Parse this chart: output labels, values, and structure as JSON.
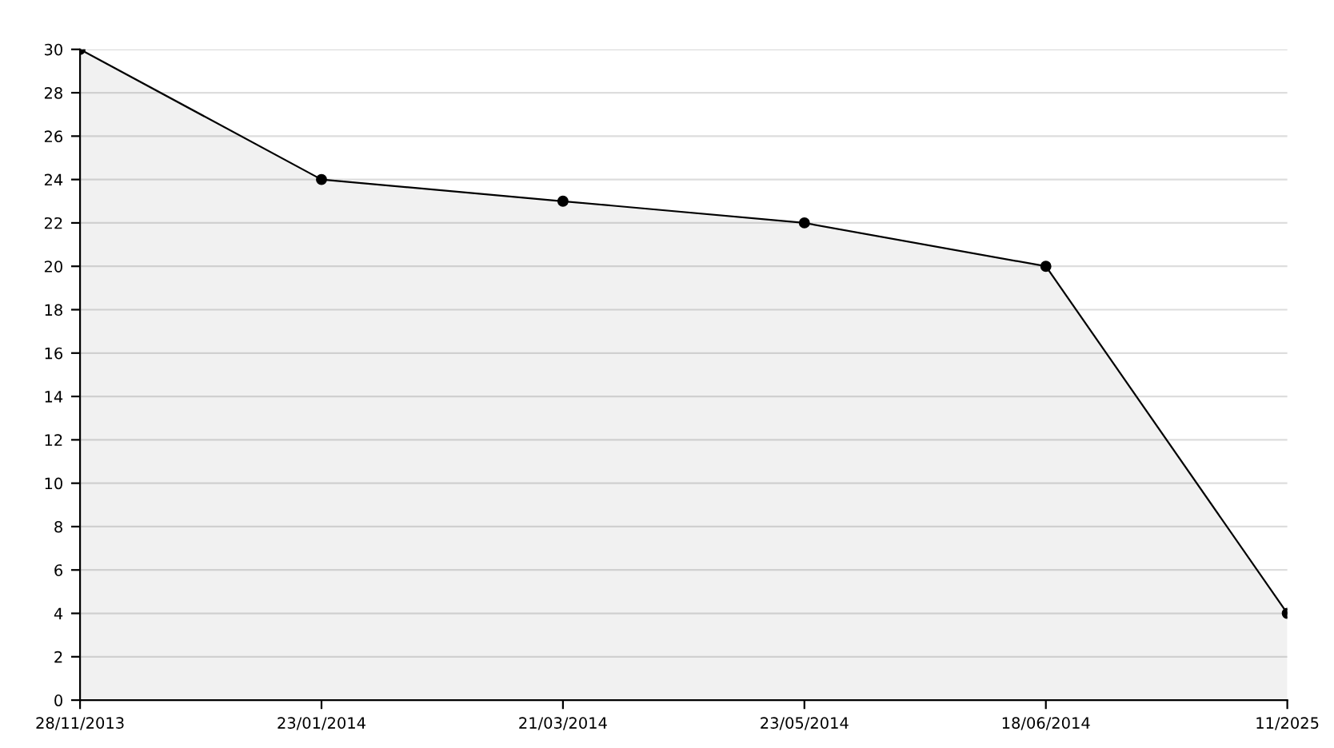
{
  "chart_data": {
    "type": "area",
    "categories": [
      "28/11/2013",
      "23/01/2014",
      "21/03/2014",
      "23/05/2014",
      "18/06/2014",
      "11/2025"
    ],
    "series": [
      {
        "color": "#000000",
        "values": [
          30,
          24,
          23,
          22,
          20,
          4
        ]
      }
    ],
    "ylim": [
      0,
      30
    ],
    "yticks": [
      0,
      2,
      4,
      6,
      8,
      10,
      12,
      14,
      16,
      18,
      20,
      22,
      24,
      26,
      28,
      30
    ],
    "grid": "y",
    "marker": "circle",
    "line_style": "solid"
  }
}
